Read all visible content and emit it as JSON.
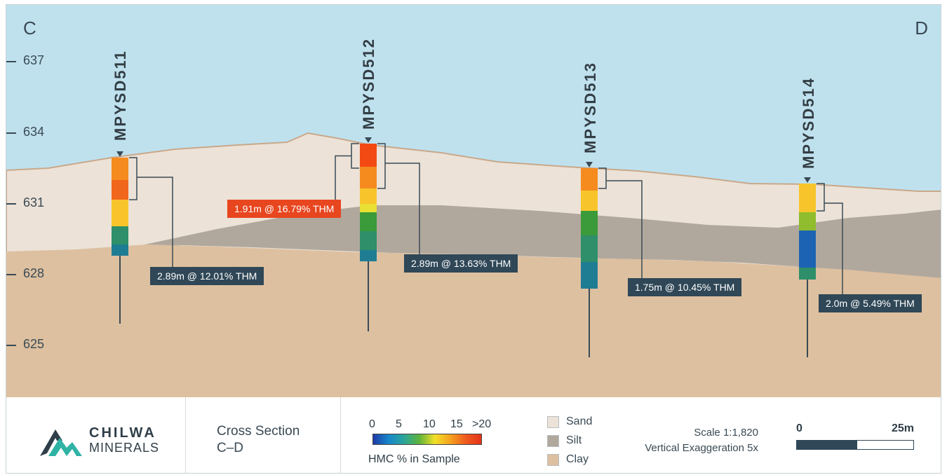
{
  "section": {
    "start_label": "C",
    "end_label": "D",
    "elevations": [
      "637",
      "634",
      "631",
      "628",
      "625"
    ],
    "colors": {
      "sky": "#bfe1ee",
      "sand": "#ece2d7",
      "silt": "#b1a89d",
      "clay": "#ddc0a0",
      "line": "#c9a88a",
      "hole": "#3a4a55"
    }
  },
  "holes": [
    {
      "name": "MPYSD511",
      "intercept": "2.89m @ 12.01% THM",
      "highlight": false,
      "interval_colors": [
        "#f58b1f",
        "#f0661d",
        "#f7c52b",
        "#2e8f6a",
        "#1f7d93"
      ]
    },
    {
      "name": "MPYSD512",
      "intercept": "2.89m @ 13.63% THM",
      "highlight": false,
      "interval_colors": [
        "#f34a14",
        "#f58b1f",
        "#f7c52b",
        "#e9e033",
        "#3b9a3a",
        "#2e8f6a",
        "#1f7d93"
      ]
    },
    {
      "name": "MPYSD512",
      "intercept_alt": "1.91m @ 16.79% THM"
    },
    {
      "name": "MPYSD513",
      "intercept": "1.75m @ 10.45% THM",
      "highlight": false,
      "interval_colors": [
        "#f58b1f",
        "#f7c52b",
        "#3b9a3a",
        "#2e8f6a",
        "#1f7d93"
      ]
    },
    {
      "name": "MPYSD514",
      "intercept": "2.0m @ 5.49% THM",
      "highlight": false,
      "interval_colors": [
        "#f7c52b",
        "#8fbd2d",
        "#1d63b3",
        "#2e8f6a"
      ]
    }
  ],
  "legend": {
    "company_line1": "CHILWA",
    "company_line2": "MINERALS",
    "title": "Cross Section",
    "subtitle": "C–D",
    "hmc_ticks": [
      "0",
      "5",
      "10",
      "15",
      ">20"
    ],
    "hmc_title": "HMC % in Sample",
    "materials": [
      {
        "label": "Sand",
        "color": "#ece2d7"
      },
      {
        "label": "Silt",
        "color": "#b1a89d"
      },
      {
        "label": "Clay",
        "color": "#ddc0a0"
      }
    ],
    "scale": "Scale 1:1,820",
    "exaggeration": "Vertical Exaggeration 5x",
    "scalebar_start": "0",
    "scalebar_end": "25m"
  }
}
